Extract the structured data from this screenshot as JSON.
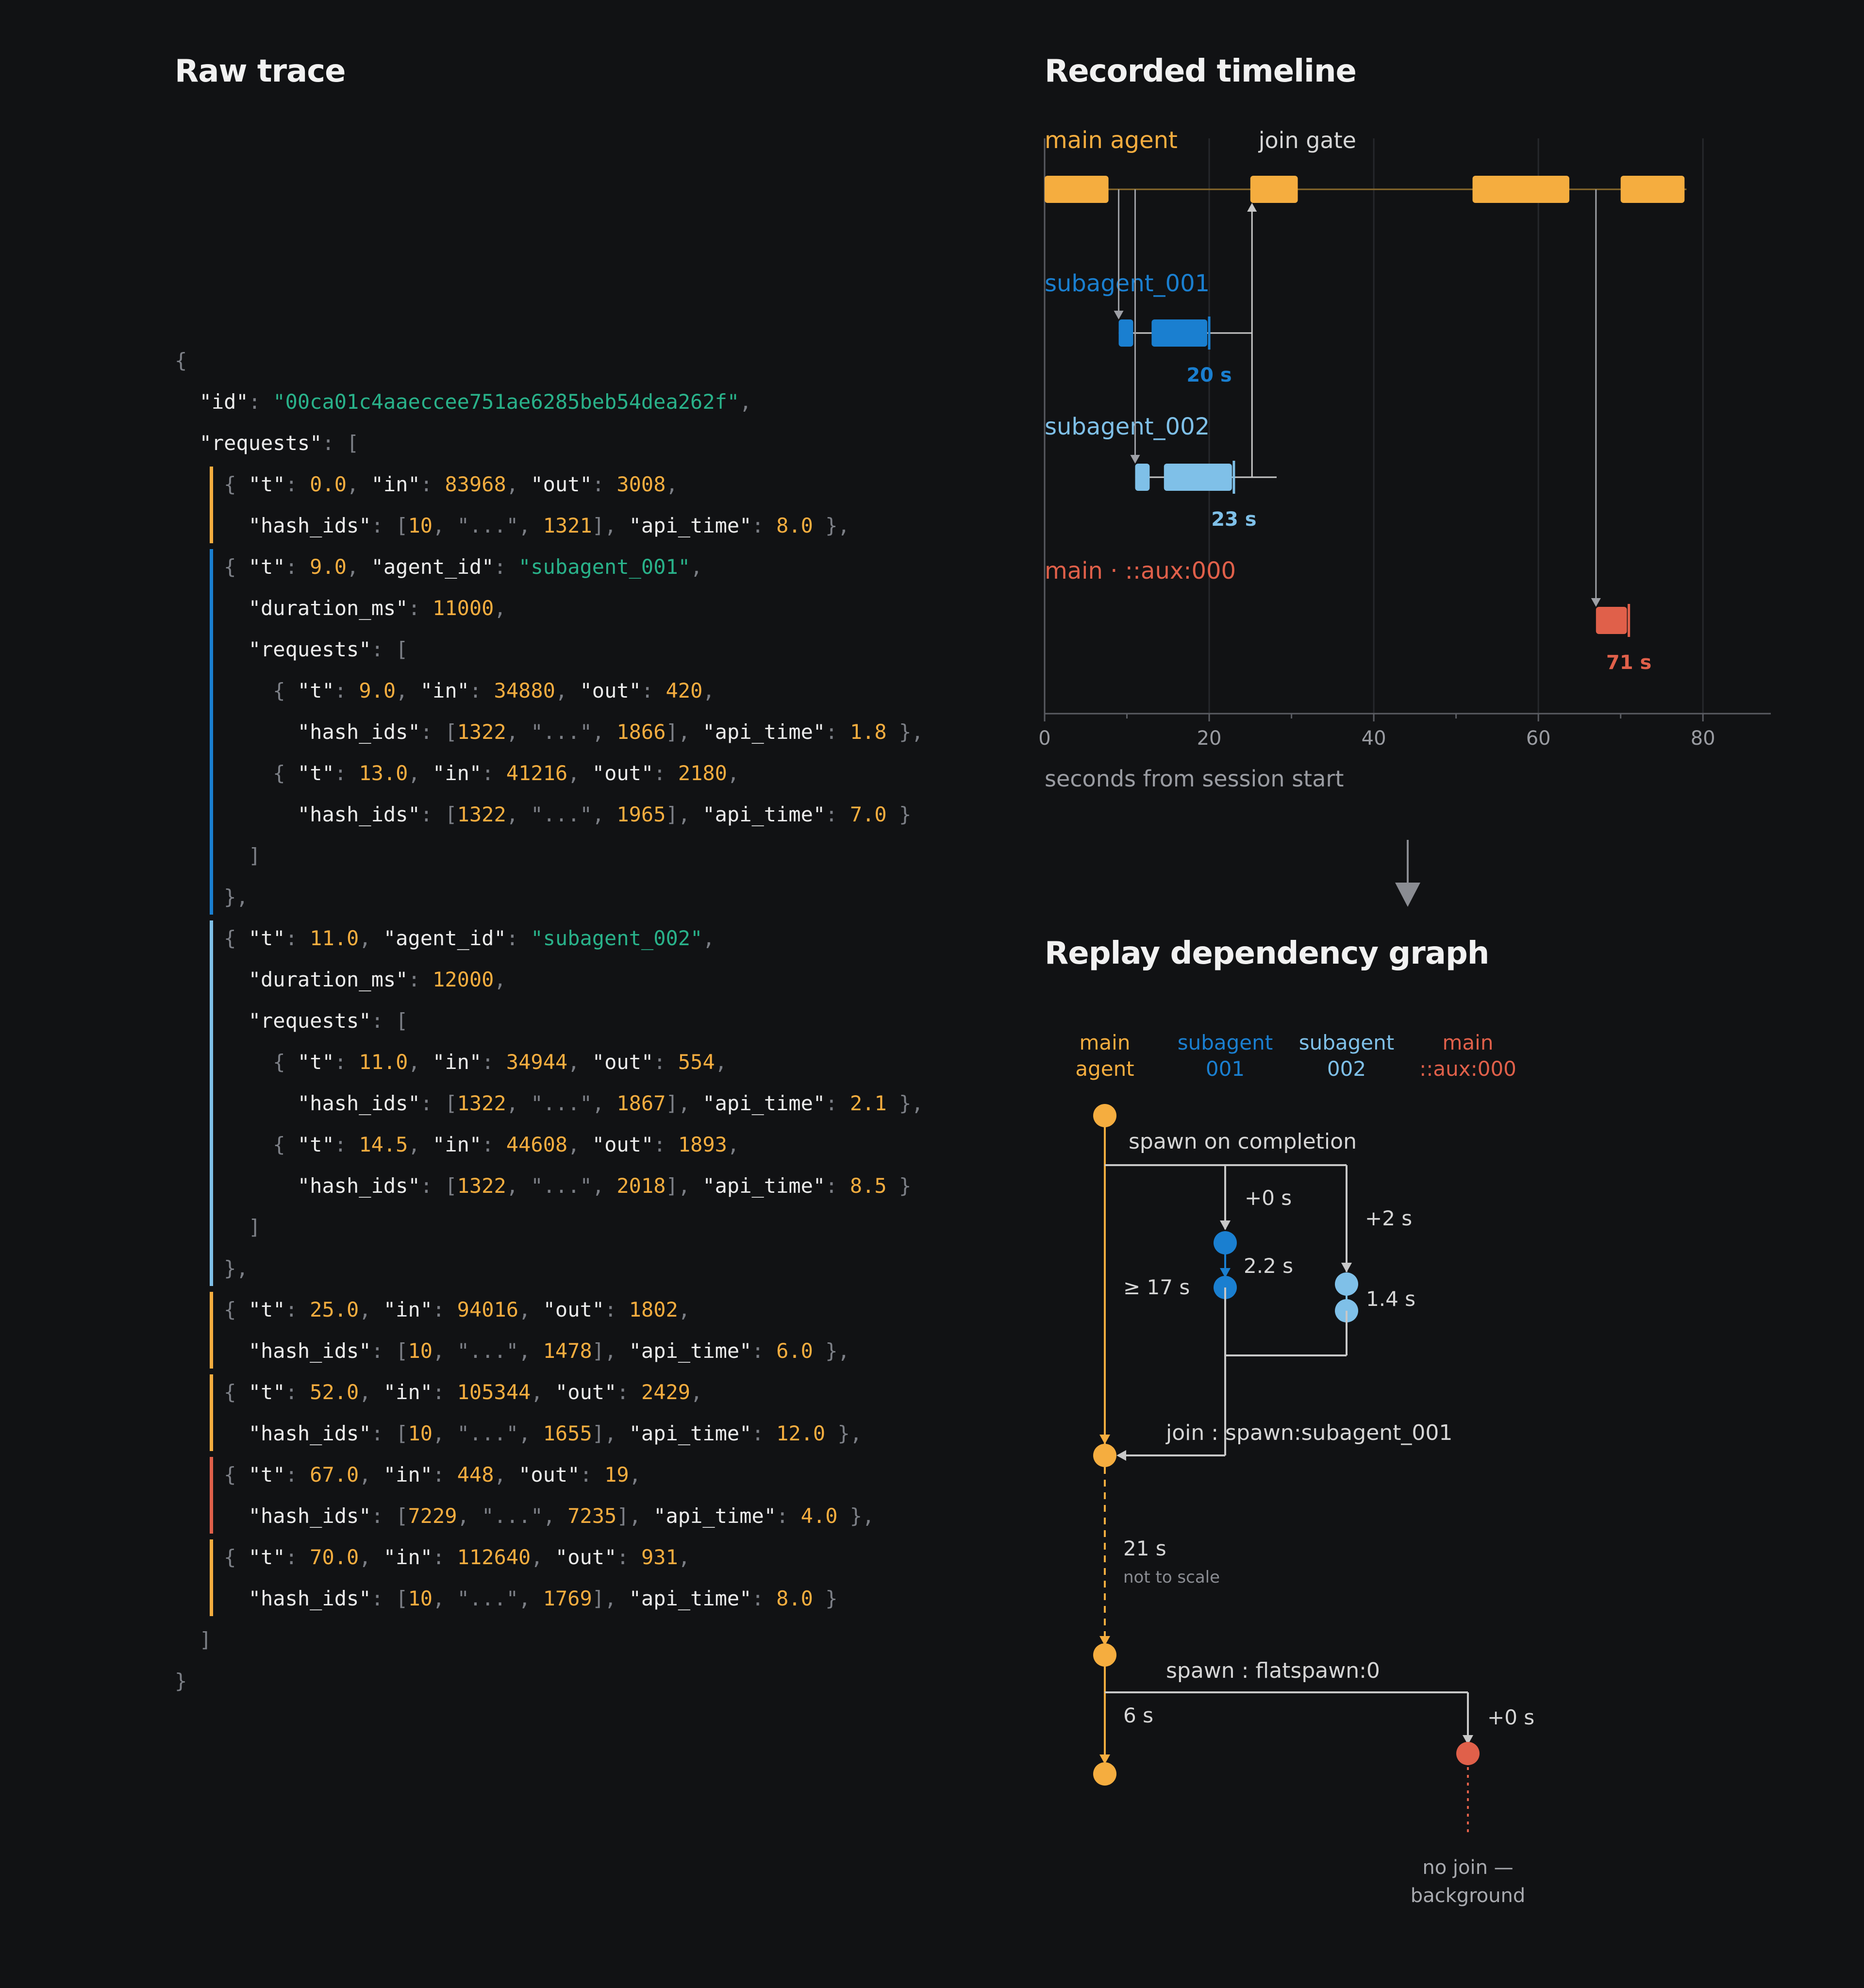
{
  "raw_trace": {
    "title": "Raw trace",
    "code_lines": [
      [
        [
          "p",
          "{"
        ]
      ],
      [
        [
          "p",
          "  "
        ],
        [
          "k",
          "\"id\""
        ],
        [
          "p",
          ": "
        ],
        [
          "s",
          "\"00ca01c4aaeccee751ae6285beb54dea262f\""
        ],
        [
          "p",
          ","
        ]
      ],
      [
        [
          "p",
          "  "
        ],
        [
          "k",
          "\"requests\""
        ],
        [
          "p",
          ": ["
        ]
      ],
      [
        [
          "p",
          "    { "
        ],
        [
          "k",
          "\"t\""
        ],
        [
          "p",
          ": "
        ],
        [
          "n",
          "0.0"
        ],
        [
          "p",
          ", "
        ],
        [
          "k",
          "\"in\""
        ],
        [
          "p",
          ": "
        ],
        [
          "n",
          "83968"
        ],
        [
          "p",
          ", "
        ],
        [
          "k",
          "\"out\""
        ],
        [
          "p",
          ": "
        ],
        [
          "n",
          "3008"
        ],
        [
          "p",
          ","
        ]
      ],
      [
        [
          "p",
          "      "
        ],
        [
          "k",
          "\"hash_ids\""
        ],
        [
          "p",
          ": ["
        ],
        [
          "n",
          "10"
        ],
        [
          "p",
          ", \"...\", "
        ],
        [
          "n",
          "1321"
        ],
        [
          "p",
          "], "
        ],
        [
          "k",
          "\"api_time\""
        ],
        [
          "p",
          ": "
        ],
        [
          "n",
          "8.0"
        ],
        [
          "p",
          " },"
        ]
      ],
      [
        [
          "p",
          "    { "
        ],
        [
          "k",
          "\"t\""
        ],
        [
          "p",
          ": "
        ],
        [
          "n",
          "9.0"
        ],
        [
          "p",
          ", "
        ],
        [
          "k",
          "\"agent_id\""
        ],
        [
          "p",
          ": "
        ],
        [
          "s",
          "\"subagent_001\""
        ],
        [
          "p",
          ","
        ]
      ],
      [
        [
          "p",
          "      "
        ],
        [
          "k",
          "\"duration_ms\""
        ],
        [
          "p",
          ": "
        ],
        [
          "n",
          "11000"
        ],
        [
          "p",
          ","
        ]
      ],
      [
        [
          "p",
          "      "
        ],
        [
          "k",
          "\"requests\""
        ],
        [
          "p",
          ": ["
        ]
      ],
      [
        [
          "p",
          "        { "
        ],
        [
          "k",
          "\"t\""
        ],
        [
          "p",
          ": "
        ],
        [
          "n",
          "9.0"
        ],
        [
          "p",
          ", "
        ],
        [
          "k",
          "\"in\""
        ],
        [
          "p",
          ": "
        ],
        [
          "n",
          "34880"
        ],
        [
          "p",
          ", "
        ],
        [
          "k",
          "\"out\""
        ],
        [
          "p",
          ": "
        ],
        [
          "n",
          "420"
        ],
        [
          "p",
          ","
        ]
      ],
      [
        [
          "p",
          "          "
        ],
        [
          "k",
          "\"hash_ids\""
        ],
        [
          "p",
          ": ["
        ],
        [
          "n",
          "1322"
        ],
        [
          "p",
          ", \"...\", "
        ],
        [
          "n",
          "1866"
        ],
        [
          "p",
          "], "
        ],
        [
          "k",
          "\"api_time\""
        ],
        [
          "p",
          ": "
        ],
        [
          "n",
          "1.8"
        ],
        [
          "p",
          " },"
        ]
      ],
      [
        [
          "p",
          "        { "
        ],
        [
          "k",
          "\"t\""
        ],
        [
          "p",
          ": "
        ],
        [
          "n",
          "13.0"
        ],
        [
          "p",
          ", "
        ],
        [
          "k",
          "\"in\""
        ],
        [
          "p",
          ": "
        ],
        [
          "n",
          "41216"
        ],
        [
          "p",
          ", "
        ],
        [
          "k",
          "\"out\""
        ],
        [
          "p",
          ": "
        ],
        [
          "n",
          "2180"
        ],
        [
          "p",
          ","
        ]
      ],
      [
        [
          "p",
          "          "
        ],
        [
          "k",
          "\"hash_ids\""
        ],
        [
          "p",
          ": ["
        ],
        [
          "n",
          "1322"
        ],
        [
          "p",
          ", \"...\", "
        ],
        [
          "n",
          "1965"
        ],
        [
          "p",
          "], "
        ],
        [
          "k",
          "\"api_time\""
        ],
        [
          "p",
          ": "
        ],
        [
          "n",
          "7.0"
        ],
        [
          "p",
          " }"
        ]
      ],
      [
        [
          "p",
          "      ]"
        ]
      ],
      [
        [
          "p",
          "    },"
        ]
      ],
      [
        [
          "p",
          "    { "
        ],
        [
          "k",
          "\"t\""
        ],
        [
          "p",
          ": "
        ],
        [
          "n",
          "11.0"
        ],
        [
          "p",
          ", "
        ],
        [
          "k",
          "\"agent_id\""
        ],
        [
          "p",
          ": "
        ],
        [
          "s",
          "\"subagent_002\""
        ],
        [
          "p",
          ","
        ]
      ],
      [
        [
          "p",
          "      "
        ],
        [
          "k",
          "\"duration_ms\""
        ],
        [
          "p",
          ": "
        ],
        [
          "n",
          "12000"
        ],
        [
          "p",
          ","
        ]
      ],
      [
        [
          "p",
          "      "
        ],
        [
          "k",
          "\"requests\""
        ],
        [
          "p",
          ": ["
        ]
      ],
      [
        [
          "p",
          "        { "
        ],
        [
          "k",
          "\"t\""
        ],
        [
          "p",
          ": "
        ],
        [
          "n",
          "11.0"
        ],
        [
          "p",
          ", "
        ],
        [
          "k",
          "\"in\""
        ],
        [
          "p",
          ": "
        ],
        [
          "n",
          "34944"
        ],
        [
          "p",
          ", "
        ],
        [
          "k",
          "\"out\""
        ],
        [
          "p",
          ": "
        ],
        [
          "n",
          "554"
        ],
        [
          "p",
          ","
        ]
      ],
      [
        [
          "p",
          "          "
        ],
        [
          "k",
          "\"hash_ids\""
        ],
        [
          "p",
          ": ["
        ],
        [
          "n",
          "1322"
        ],
        [
          "p",
          ", \"...\", "
        ],
        [
          "n",
          "1867"
        ],
        [
          "p",
          "], "
        ],
        [
          "k",
          "\"api_time\""
        ],
        [
          "p",
          ": "
        ],
        [
          "n",
          "2.1"
        ],
        [
          "p",
          " },"
        ]
      ],
      [
        [
          "p",
          "        { "
        ],
        [
          "k",
          "\"t\""
        ],
        [
          "p",
          ": "
        ],
        [
          "n",
          "14.5"
        ],
        [
          "p",
          ", "
        ],
        [
          "k",
          "\"in\""
        ],
        [
          "p",
          ": "
        ],
        [
          "n",
          "44608"
        ],
        [
          "p",
          ", "
        ],
        [
          "k",
          "\"out\""
        ],
        [
          "p",
          ": "
        ],
        [
          "n",
          "1893"
        ],
        [
          "p",
          ","
        ]
      ],
      [
        [
          "p",
          "          "
        ],
        [
          "k",
          "\"hash_ids\""
        ],
        [
          "p",
          ": ["
        ],
        [
          "n",
          "1322"
        ],
        [
          "p",
          ", \"...\", "
        ],
        [
          "n",
          "2018"
        ],
        [
          "p",
          "], "
        ],
        [
          "k",
          "\"api_time\""
        ],
        [
          "p",
          ": "
        ],
        [
          "n",
          "8.5"
        ],
        [
          "p",
          " }"
        ]
      ],
      [
        [
          "p",
          "      ]"
        ]
      ],
      [
        [
          "p",
          "    },"
        ]
      ],
      [
        [
          "p",
          "    { "
        ],
        [
          "k",
          "\"t\""
        ],
        [
          "p",
          ": "
        ],
        [
          "n",
          "25.0"
        ],
        [
          "p",
          ", "
        ],
        [
          "k",
          "\"in\""
        ],
        [
          "p",
          ": "
        ],
        [
          "n",
          "94016"
        ],
        [
          "p",
          ", "
        ],
        [
          "k",
          "\"out\""
        ],
        [
          "p",
          ": "
        ],
        [
          "n",
          "1802"
        ],
        [
          "p",
          ","
        ]
      ],
      [
        [
          "p",
          "      "
        ],
        [
          "k",
          "\"hash_ids\""
        ],
        [
          "p",
          ": ["
        ],
        [
          "n",
          "10"
        ],
        [
          "p",
          ", \"...\", "
        ],
        [
          "n",
          "1478"
        ],
        [
          "p",
          "], "
        ],
        [
          "k",
          "\"api_time\""
        ],
        [
          "p",
          ": "
        ],
        [
          "n",
          "6.0"
        ],
        [
          "p",
          " },"
        ]
      ],
      [
        [
          "p",
          "    { "
        ],
        [
          "k",
          "\"t\""
        ],
        [
          "p",
          ": "
        ],
        [
          "n",
          "52.0"
        ],
        [
          "p",
          ", "
        ],
        [
          "k",
          "\"in\""
        ],
        [
          "p",
          ": "
        ],
        [
          "n",
          "105344"
        ],
        [
          "p",
          ", "
        ],
        [
          "k",
          "\"out\""
        ],
        [
          "p",
          ": "
        ],
        [
          "n",
          "2429"
        ],
        [
          "p",
          ","
        ]
      ],
      [
        [
          "p",
          "      "
        ],
        [
          "k",
          "\"hash_ids\""
        ],
        [
          "p",
          ": ["
        ],
        [
          "n",
          "10"
        ],
        [
          "p",
          ", \"...\", "
        ],
        [
          "n",
          "1655"
        ],
        [
          "p",
          "], "
        ],
        [
          "k",
          "\"api_time\""
        ],
        [
          "p",
          ": "
        ],
        [
          "n",
          "12.0"
        ],
        [
          "p",
          " },"
        ]
      ],
      [
        [
          "p",
          "    { "
        ],
        [
          "k",
          "\"t\""
        ],
        [
          "p",
          ": "
        ],
        [
          "n",
          "67.0"
        ],
        [
          "p",
          ", "
        ],
        [
          "k",
          "\"in\""
        ],
        [
          "p",
          ": "
        ],
        [
          "n",
          "448"
        ],
        [
          "p",
          ", "
        ],
        [
          "k",
          "\"out\""
        ],
        [
          "p",
          ": "
        ],
        [
          "n",
          "19"
        ],
        [
          "p",
          ","
        ]
      ],
      [
        [
          "p",
          "      "
        ],
        [
          "k",
          "\"hash_ids\""
        ],
        [
          "p",
          ": ["
        ],
        [
          "n",
          "7229"
        ],
        [
          "p",
          ", \"...\", "
        ],
        [
          "n",
          "7235"
        ],
        [
          "p",
          "], "
        ],
        [
          "k",
          "\"api_time\""
        ],
        [
          "p",
          ": "
        ],
        [
          "n",
          "4.0"
        ],
        [
          "p",
          " },"
        ]
      ],
      [
        [
          "p",
          "    { "
        ],
        [
          "k",
          "\"t\""
        ],
        [
          "p",
          ": "
        ],
        [
          "n",
          "70.0"
        ],
        [
          "p",
          ", "
        ],
        [
          "k",
          "\"in\""
        ],
        [
          "p",
          ": "
        ],
        [
          "n",
          "112640"
        ],
        [
          "p",
          ", "
        ],
        [
          "k",
          "\"out\""
        ],
        [
          "p",
          ": "
        ],
        [
          "n",
          "931"
        ],
        [
          "p",
          ","
        ]
      ],
      [
        [
          "p",
          "      "
        ],
        [
          "k",
          "\"hash_ids\""
        ],
        [
          "p",
          ": ["
        ],
        [
          "n",
          "10"
        ],
        [
          "p",
          ", \"...\", "
        ],
        [
          "n",
          "1769"
        ],
        [
          "p",
          "], "
        ],
        [
          "k",
          "\"api_time\""
        ],
        [
          "p",
          ": "
        ],
        [
          "n",
          "8.0"
        ],
        [
          "p",
          " }"
        ]
      ],
      [
        [
          "p",
          "  ]"
        ]
      ],
      [
        [
          "p",
          "}"
        ]
      ]
    ],
    "bracket_groups": [
      {
        "from": 3,
        "to": 4,
        "color": "#f5ad3f"
      },
      {
        "from": 5,
        "to": 13,
        "color": "#1a7fd0"
      },
      {
        "from": 14,
        "to": 22,
        "color": "#7fc0e8"
      },
      {
        "from": 23,
        "to": 24,
        "color": "#f5ad3f"
      },
      {
        "from": 25,
        "to": 26,
        "color": "#f5ad3f"
      },
      {
        "from": 27,
        "to": 28,
        "color": "#e0604a"
      },
      {
        "from": 29,
        "to": 30,
        "color": "#f5ad3f"
      }
    ]
  },
  "timeline": {
    "title": "Recorded timeline",
    "join_gate_label": "join gate",
    "x_axis_label": "seconds from session start",
    "x_ticks": [
      "0",
      "20",
      "40",
      "60",
      "80"
    ],
    "xlim": [
      0,
      84
    ],
    "lanes": [
      {
        "name": "main agent",
        "color": "#f5ad3f",
        "bars": [
          [
            0,
            8
          ],
          [
            25,
            31
          ],
          [
            52,
            64
          ],
          [
            70,
            78
          ]
        ]
      },
      {
        "name": "subagent_001",
        "color": "#1a7fd0",
        "duration_label": "20 s",
        "bars": [
          [
            9,
            11
          ],
          [
            13,
            20
          ]
        ]
      },
      {
        "name": "subagent_002",
        "color": "#7fc0e8",
        "duration_label": "23 s",
        "bars": [
          [
            11,
            13
          ],
          [
            14.5,
            23
          ]
        ]
      },
      {
        "name": "main · ::aux:000",
        "color": "#e0604a",
        "duration_label": "71 s",
        "bars": [
          [
            67,
            71
          ]
        ]
      }
    ]
  },
  "graph": {
    "title": "Replay dependency graph",
    "columns": [
      {
        "line1": "main",
        "line2": "agent",
        "color": "#f5ad3f"
      },
      {
        "line1": "subagent",
        "line2": "001",
        "color": "#1a7fd0"
      },
      {
        "line1": "subagent",
        "line2": "002",
        "color": "#7fc0e8"
      },
      {
        "line1": "main",
        "line2": "::aux:000",
        "color": "#e0604a"
      }
    ],
    "labels": {
      "spawn_on_completion": "spawn on completion",
      "plus0_a": "+0 s",
      "plus2": "+2 s",
      "s001_gap": "2.2 s",
      "s002_gap": "1.4 s",
      "main_wait": "≥ 17 s",
      "join": "join : spawn:subagent_001",
      "gap21": "21 s",
      "not_to_scale": "not to scale",
      "spawn_flat": "spawn : flatspawn:0",
      "gap6": "6 s",
      "plus0_b": "+0 s",
      "no_join_1": "no join —",
      "no_join_2": "background"
    }
  },
  "colors": {
    "main": "#f5ad3f",
    "sub001": "#1a7fd0",
    "sub002": "#7fc0e8",
    "aux": "#e0604a",
    "connector": "#c8c8c8",
    "axis": "#5a5c62"
  }
}
